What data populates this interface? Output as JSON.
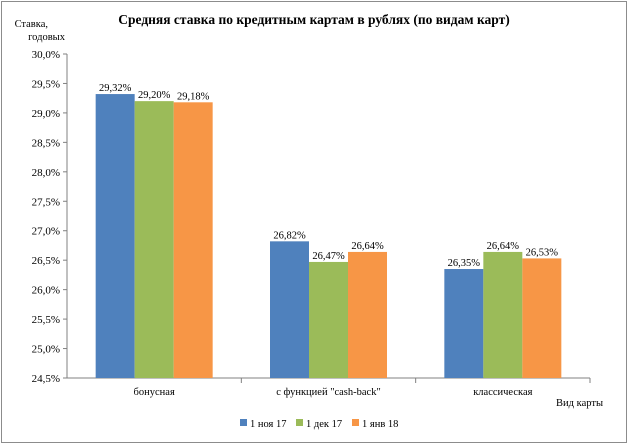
{
  "chart_data": {
    "type": "bar",
    "title": "Средняя ставка по кредитным картам в рублях (по видам карт)",
    "ylabel": [
      "Ставка,",
      "годовых"
    ],
    "xlabel": "Вид карты",
    "ylim": [
      24.5,
      30.0
    ],
    "yticks": [
      "24,5%",
      "25,0%",
      "25,5%",
      "26,0%",
      "26,5%",
      "27,0%",
      "27,5%",
      "28,0%",
      "28,5%",
      "29,0%",
      "29,5%",
      "30,0%"
    ],
    "categories": [
      "бонусная",
      "с функцией \"cash-back\"",
      "классическая"
    ],
    "series": [
      {
        "name": "1 ноя 17",
        "color": "#4f81bd",
        "values": [
          29.32,
          26.82,
          26.35
        ],
        "labels": [
          "29,32%",
          "26,82%",
          "26,35%"
        ]
      },
      {
        "name": "1 дек 17",
        "color": "#9bbb59",
        "values": [
          29.2,
          26.47,
          26.64
        ],
        "labels": [
          "29,20%",
          "26,47%",
          "26,64%"
        ]
      },
      {
        "name": "1 янв 18",
        "color": "#f79646",
        "values": [
          29.18,
          26.64,
          26.53
        ],
        "labels": [
          "29,18%",
          "26,64%",
          "26,53%"
        ]
      }
    ],
    "grid": false,
    "legend_position": "bottom"
  }
}
